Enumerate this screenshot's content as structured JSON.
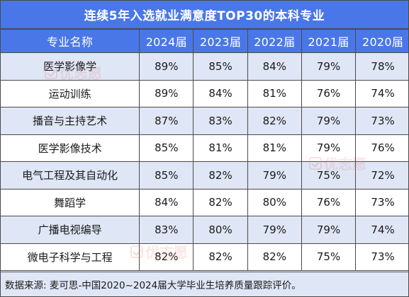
{
  "title": "连续5年入选就业满意度TOP30的本科专业",
  "headers": [
    "专业名称",
    "2024届",
    "2023届",
    "2022届",
    "2021届",
    "2020届"
  ],
  "rows": [
    {
      "major": "医学影像学",
      "y2024": "89%",
      "y2023": "85%",
      "y2022": "84%",
      "y2021": "79%",
      "y2020": "78%"
    },
    {
      "major": "运动训练",
      "y2024": "89%",
      "y2023": "84%",
      "y2022": "81%",
      "y2021": "76%",
      "y2020": "74%"
    },
    {
      "major": "播音与主持艺术",
      "y2024": "87%",
      "y2023": "83%",
      "y2022": "82%",
      "y2021": "79%",
      "y2020": "73%"
    },
    {
      "major": "医学影像技术",
      "y2024": "85%",
      "y2023": "81%",
      "y2022": "81%",
      "y2021": "79%",
      "y2020": "76%"
    },
    {
      "major": "电气工程及其自动化",
      "y2024": "85%",
      "y2023": "82%",
      "y2022": "79%",
      "y2021": "75%",
      "y2020": "72%"
    },
    {
      "major": "舞蹈学",
      "y2024": "84%",
      "y2023": "82%",
      "y2022": "80%",
      "y2021": "76%",
      "y2020": "73%"
    },
    {
      "major": "广播电视编导",
      "y2024": "83%",
      "y2023": "80%",
      "y2022": "79%",
      "y2021": "79%",
      "y2020": "74%"
    },
    {
      "major": "微电子科学与工程",
      "y2024": "82%",
      "y2023": "82%",
      "y2022": "82%",
      "y2021": "75%",
      "y2020": "73%"
    }
  ],
  "source": "数据来源: 麦可思-中国2020~2024届大学毕业生培养质量跟踪评价。",
  "watermark": "优志愿",
  "colors": {
    "header_bg": "#4a77e8",
    "band_bg": "#dfe6f5",
    "border": "#4a4a4a",
    "watermark": "#e67878"
  }
}
